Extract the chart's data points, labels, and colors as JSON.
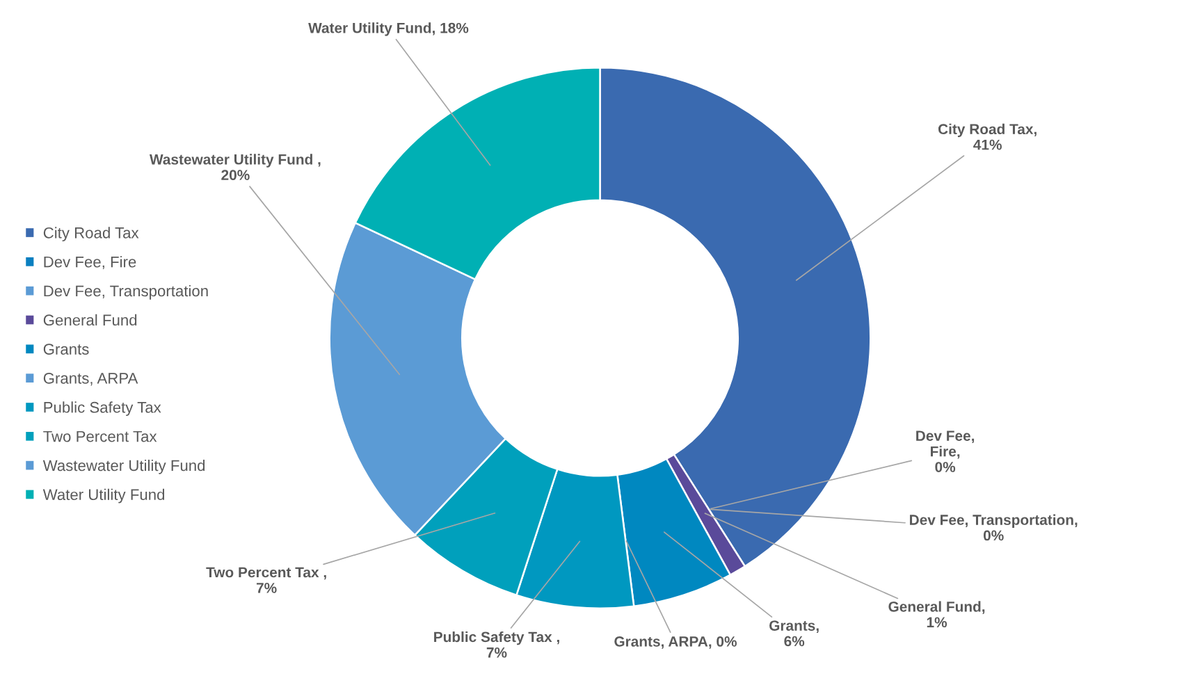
{
  "chart_data": {
    "type": "donut",
    "categories": [
      "City Road Tax",
      "Dev Fee, Fire",
      "Dev Fee, Transportation",
      "General Fund",
      "Grants",
      "Grants, ARPA",
      "Public Safety Tax",
      "Two Percent Tax",
      "Wastewater Utility Fund",
      "Water Utility Fund"
    ],
    "values": [
      41,
      0,
      0,
      1,
      6,
      0,
      7,
      7,
      20,
      18
    ],
    "colors": [
      "#3a6ab0",
      "#0a7fc0",
      "#5b9bd5",
      "#5a4a9a",
      "#0088c0",
      "#5b9bd5",
      "#0098c0",
      "#00a0bc",
      "#5b9bd5",
      "#00b0b4"
    ],
    "value_labels": [
      "City Road Tax,\n41%",
      "Dev Fee,\nFire,\n0%",
      "Dev Fee, Transportation,\n0%",
      "General Fund,\n1%",
      "Grants,\n6%",
      "Grants, ARPA, 0%",
      "Public Safety Tax ,\n7%",
      "Two Percent Tax ,\n7%",
      "Wastewater Utility Fund ,\n20%",
      "Water Utility Fund, 18%"
    ],
    "legend": "left"
  }
}
